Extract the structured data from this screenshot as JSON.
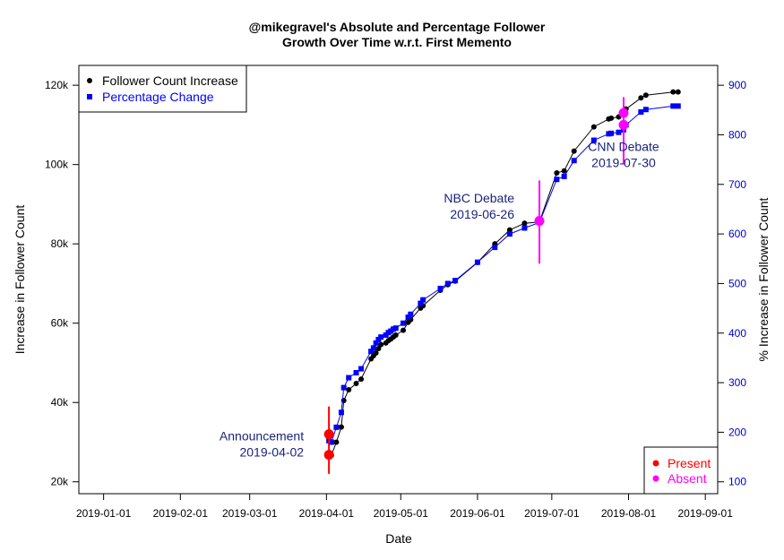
{
  "chart_data": {
    "type": "line",
    "title_lines": [
      "@mikegravel's Absolute and Percentage Follower",
      "Growth Over Time w.r.t. First Memento"
    ],
    "xlabel": "Date",
    "ylabel_left": "Increase in Follower Count",
    "ylabel_right": "% Increase in Follower Count",
    "x_ticks": [
      "2019-01-01",
      "2019-02-01",
      "2019-03-01",
      "2019-04-01",
      "2019-05-01",
      "2019-06-01",
      "2019-07-01",
      "2019-08-01",
      "2019-09-01"
    ],
    "x_range": [
      "2018-12-22",
      "2019-09-06"
    ],
    "y_left_ticks": [
      20000,
      40000,
      60000,
      80000,
      100000,
      120000
    ],
    "y_left_tick_labels": [
      "20k",
      "40k",
      "60k",
      "80k",
      "100k",
      "120k"
    ],
    "y_left_range": [
      17000,
      125000
    ],
    "y_right_ticks": [
      100,
      200,
      300,
      400,
      500,
      600,
      700,
      800,
      900
    ],
    "y_right_tick_labels": [
      "100",
      "200",
      "300",
      "400",
      "500",
      "600",
      "700",
      "800",
      "900"
    ],
    "y_right_range": [
      100,
      900
    ],
    "series": [
      {
        "name": "Follower Count Increase",
        "color": "#000000",
        "marker": "circle",
        "axis": "left",
        "points": [
          [
            "2019-04-02",
            26800
          ],
          [
            "2019-04-03",
            26700
          ],
          [
            "2019-04-05",
            30000
          ],
          [
            "2019-04-07",
            33800
          ],
          [
            "2019-04-08",
            40500
          ],
          [
            "2019-04-10",
            43200
          ],
          [
            "2019-04-13",
            44800
          ],
          [
            "2019-04-15",
            45900
          ],
          [
            "2019-04-19",
            51000
          ],
          [
            "2019-04-20",
            51800
          ],
          [
            "2019-04-21",
            52500
          ],
          [
            "2019-04-22",
            53600
          ],
          [
            "2019-04-23",
            54600
          ],
          [
            "2019-04-25",
            55000
          ],
          [
            "2019-04-26",
            55600
          ],
          [
            "2019-04-27",
            56000
          ],
          [
            "2019-04-28",
            56500
          ],
          [
            "2019-04-29",
            57000
          ],
          [
            "2019-05-02",
            58200
          ],
          [
            "2019-05-04",
            60200
          ],
          [
            "2019-05-05",
            60900
          ],
          [
            "2019-05-09",
            63800
          ],
          [
            "2019-05-10",
            64400
          ],
          [
            "2019-05-17",
            68300
          ],
          [
            "2019-05-20",
            69700
          ],
          [
            "2019-05-23",
            70600
          ],
          [
            "2019-06-01",
            75300
          ],
          [
            "2019-06-08",
            80000
          ],
          [
            "2019-06-14",
            83500
          ],
          [
            "2019-06-20",
            85200
          ],
          [
            "2019-06-26",
            85500
          ],
          [
            "2019-07-03",
            97900
          ],
          [
            "2019-07-06",
            98400
          ],
          [
            "2019-07-10",
            103400
          ],
          [
            "2019-07-18",
            109500
          ],
          [
            "2019-07-24",
            111500
          ],
          [
            "2019-07-25",
            111700
          ],
          [
            "2019-07-28",
            112000
          ],
          [
            "2019-07-30",
            112500
          ],
          [
            "2019-07-31",
            114000
          ],
          [
            "2019-08-06",
            116800
          ],
          [
            "2019-08-08",
            117500
          ],
          [
            "2019-08-19",
            118300
          ],
          [
            "2019-08-21",
            118300
          ]
        ]
      },
      {
        "name": "Percentage Change",
        "color": "#0000ff",
        "marker": "square",
        "axis": "right",
        "points": [
          [
            "2019-04-02",
            183
          ],
          [
            "2019-04-03",
            180
          ],
          [
            "2019-04-05",
            210
          ],
          [
            "2019-04-07",
            240
          ],
          [
            "2019-04-08",
            290
          ],
          [
            "2019-04-10",
            310
          ],
          [
            "2019-04-13",
            320
          ],
          [
            "2019-04-15",
            328
          ],
          [
            "2019-04-19",
            363
          ],
          [
            "2019-04-20",
            370
          ],
          [
            "2019-04-21",
            380
          ],
          [
            "2019-04-22",
            387
          ],
          [
            "2019-04-23",
            392
          ],
          [
            "2019-04-25",
            396
          ],
          [
            "2019-04-26",
            401
          ],
          [
            "2019-04-27",
            404
          ],
          [
            "2019-04-28",
            408
          ],
          [
            "2019-04-29",
            410
          ],
          [
            "2019-05-02",
            420
          ],
          [
            "2019-05-04",
            432
          ],
          [
            "2019-05-05",
            438
          ],
          [
            "2019-05-09",
            460
          ],
          [
            "2019-05-10",
            467
          ],
          [
            "2019-05-17",
            490
          ],
          [
            "2019-05-20",
            500
          ],
          [
            "2019-05-23",
            506
          ],
          [
            "2019-06-01",
            543
          ],
          [
            "2019-06-08",
            573
          ],
          [
            "2019-06-14",
            600
          ],
          [
            "2019-06-20",
            612
          ],
          [
            "2019-06-26",
            623
          ],
          [
            "2019-07-03",
            710
          ],
          [
            "2019-07-06",
            716
          ],
          [
            "2019-07-10",
            748
          ],
          [
            "2019-07-18",
            789
          ],
          [
            "2019-07-24",
            802
          ],
          [
            "2019-07-25",
            803
          ],
          [
            "2019-07-28",
            805
          ],
          [
            "2019-07-30",
            810
          ],
          [
            "2019-07-31",
            820
          ],
          [
            "2019-08-06",
            846
          ],
          [
            "2019-08-08",
            851
          ],
          [
            "2019-08-19",
            858
          ],
          [
            "2019-08-21",
            858
          ]
        ]
      }
    ],
    "events": [
      {
        "label": "Announcement",
        "date_label": "2019-04-02",
        "date": "2019-04-02",
        "status": "Present",
        "markers_left": [
          26800,
          32000
        ],
        "line_range_left": [
          22000,
          39000
        ],
        "text_side": "left",
        "text_anchor_left": 30000
      },
      {
        "label": "NBC Debate",
        "date_label": "2019-06-26",
        "date": "2019-06-26",
        "status": "Absent",
        "markers_left": [
          85800
        ],
        "line_range_left": [
          75000,
          96000
        ],
        "text_side": "left",
        "text_anchor_left": 90000
      },
      {
        "label": "CNN Debate",
        "date_label": "2019-07-30",
        "date": "2019-07-30",
        "status": "Absent",
        "markers_left": [
          110000,
          113000
        ],
        "line_range_left": [
          100000,
          117000
        ],
        "text_side": "center",
        "text_anchor_left": 103000
      }
    ],
    "status_colors": {
      "Present": "#ff0000",
      "Absent": "#ff00ff"
    },
    "legend_series_placement": "top-left",
    "legend_status_placement": "bottom-right",
    "status_legend": [
      {
        "label": "Present",
        "color": "#ff0000"
      },
      {
        "label": "Absent",
        "color": "#ff00ff"
      }
    ],
    "grid": false
  }
}
